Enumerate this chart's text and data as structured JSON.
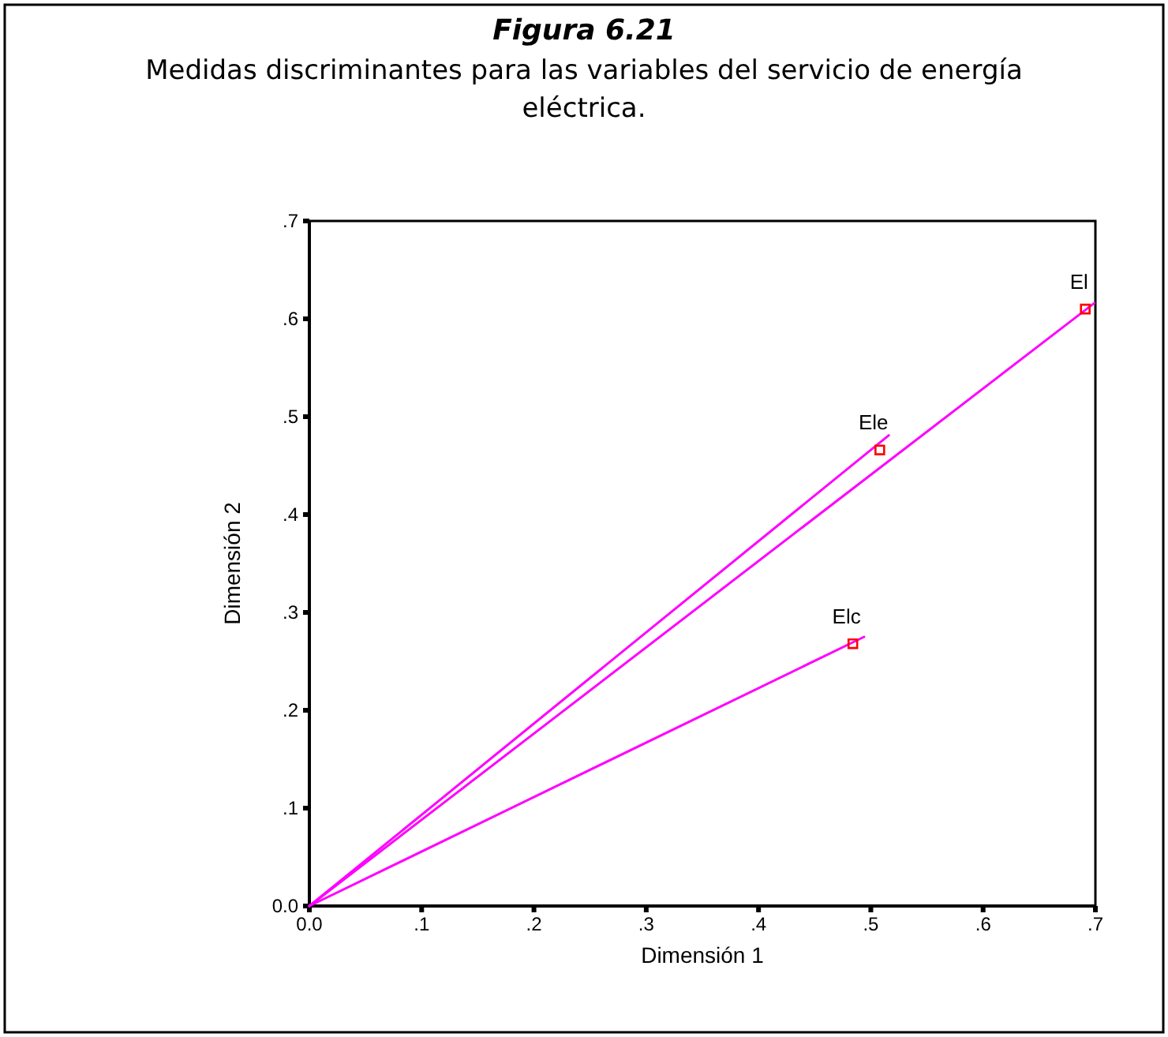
{
  "chart_data": {
    "type": "scatter",
    "title": "Figura 6.21",
    "subtitle": "Medidas discriminantes para las variables del servicio de energía eléctrica.",
    "xlabel": "Dimensión 1",
    "ylabel": "Dimensión 2",
    "xlim": [
      0,
      0.7
    ],
    "ylim": [
      0,
      0.7
    ],
    "xticks": [
      {
        "value": 0,
        "label": "0.0"
      },
      {
        "value": 0.1,
        "label": ".1"
      },
      {
        "value": 0.2,
        "label": ".2"
      },
      {
        "value": 0.3,
        "label": ".3"
      },
      {
        "value": 0.4,
        "label": ".4"
      },
      {
        "value": 0.5,
        "label": ".5"
      },
      {
        "value": 0.6,
        "label": ".6"
      },
      {
        "value": 0.7,
        "label": ".7"
      }
    ],
    "yticks": [
      {
        "value": 0,
        "label": "0.0"
      },
      {
        "value": 0.1,
        "label": ".1"
      },
      {
        "value": 0.2,
        "label": ".2"
      },
      {
        "value": 0.3,
        "label": ".3"
      },
      {
        "value": 0.4,
        "label": ".4"
      },
      {
        "value": 0.5,
        "label": ".5"
      },
      {
        "value": 0.6,
        "label": ".6"
      },
      {
        "value": 0.7,
        "label": ".7"
      }
    ],
    "grid": false,
    "series": [
      {
        "type": "line",
        "color": "#ff00ff",
        "x": [
          0,
          0.699
        ],
        "values": [
          0,
          0.616
        ],
        "marker": "none"
      },
      {
        "type": "line",
        "color": "#ff00ff",
        "x": [
          0,
          0.516
        ],
        "values": [
          0,
          0.481
        ],
        "marker": "none"
      },
      {
        "type": "line",
        "color": "#ff00ff",
        "x": [
          0,
          0.494
        ],
        "values": [
          0,
          0.275
        ],
        "marker": "none"
      },
      {
        "color": "#ff0000",
        "x": [
          0.691,
          0.508,
          0.484
        ],
        "values": [
          0.61,
          0.466,
          0.268
        ],
        "marker": "square"
      }
    ],
    "annotations": [
      {
        "text": "El",
        "x": 0.691,
        "y": 0.61
      },
      {
        "text": "Ele",
        "x": 0.508,
        "y": 0.466
      },
      {
        "text": "Elc",
        "x": 0.484,
        "y": 0.268
      }
    ]
  }
}
